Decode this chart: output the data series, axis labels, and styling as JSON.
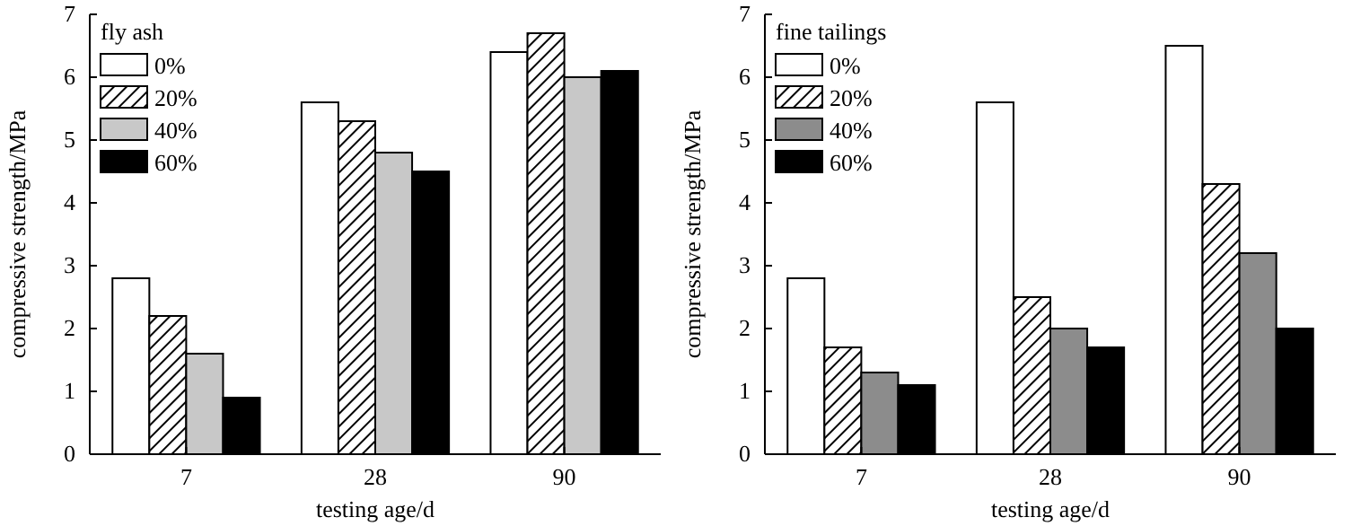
{
  "chart_data": [
    {
      "type": "bar",
      "legend_title": "fly ash",
      "xlabel": "testing age/d",
      "ylabel": "compressive strength/MPa",
      "categories": [
        "7",
        "28",
        "90"
      ],
      "ylim": [
        0,
        7
      ],
      "yticks": [
        0,
        1,
        2,
        3,
        4,
        5,
        6,
        7
      ],
      "legend": "top left",
      "grid": false,
      "series": [
        {
          "name": "0%",
          "color": "#ffffff",
          "values": [
            2.8,
            5.6,
            6.4
          ]
        },
        {
          "name": "20%",
          "color": "#000000",
          "values": [
            2.2,
            5.3,
            6.7
          ]
        },
        {
          "name": "40%",
          "color": "#c8c8c8",
          "values": [
            1.6,
            4.8,
            6.0
          ]
        },
        {
          "name": "60%",
          "color": "#000000",
          "values": [
            0.9,
            4.5,
            6.1
          ]
        }
      ]
    },
    {
      "type": "bar",
      "legend_title": "fine tailings",
      "xlabel": "testing age/d",
      "ylabel": "compressive strength/MPa",
      "categories": [
        "7",
        "28",
        "90"
      ],
      "ylim": [
        0,
        7
      ],
      "yticks": [
        0,
        1,
        2,
        3,
        4,
        5,
        6,
        7
      ],
      "legend": "top left",
      "grid": false,
      "series": [
        {
          "name": "0%",
          "color": "#ffffff",
          "values": [
            2.8,
            5.6,
            6.5
          ]
        },
        {
          "name": "20%",
          "color": "#000000",
          "values": [
            1.7,
            2.5,
            4.3
          ]
        },
        {
          "name": "40%",
          "color": "#8c8c8c",
          "values": [
            1.3,
            2.0,
            3.2
          ]
        },
        {
          "name": "60%",
          "color": "#000000",
          "values": [
            1.1,
            1.7,
            2.0
          ]
        }
      ]
    }
  ]
}
